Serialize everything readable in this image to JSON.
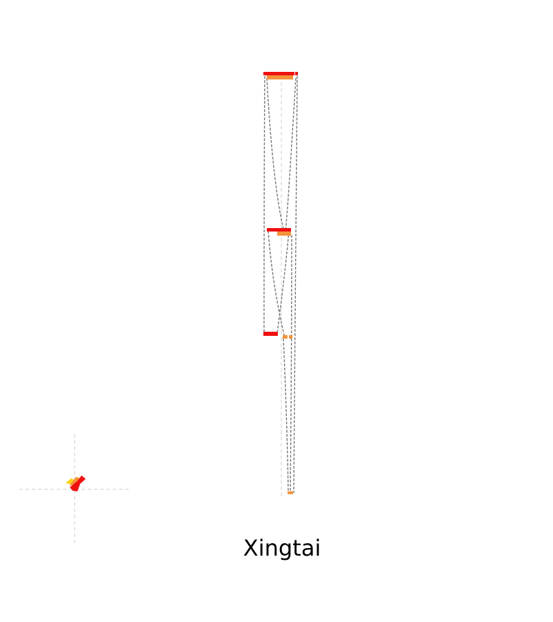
{
  "caption": "Xingtai",
  "colors": {
    "band_primary": "#ee1111",
    "band_secondary": "#f5933a",
    "link_stroke": "#777777",
    "guide_stroke": "#cccccc",
    "glyph_yellow": "#ffd21a",
    "glyph_orange": "#f5933a",
    "glyph_red": "#ee1111"
  }
}
